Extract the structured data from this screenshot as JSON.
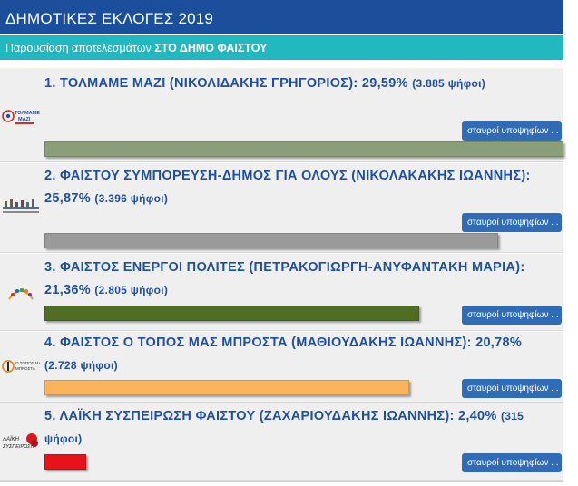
{
  "header": {
    "title": "ΔΗΜΟΤΙΚΕΣ ΕΚΛΟΓΕΣ 2019"
  },
  "subheader": {
    "prefix": "Παρουσίαση αποτελεσμάτων",
    "target": "ΣΤΟ ΔΗΜΟ ΦΑΙΣΤΟΥ"
  },
  "button_label": "σταυροί υποψηφίων . . .",
  "results": [
    {
      "title": "1. ΤΟΛΜΑΜΕ ΜΑΖΙ (ΝΙΚΟΛΙΔΑΚΗΣ ΓΡΗΓΟΡΙΟΣ): 29,59%",
      "votes": "(3.885 ψήφοι)",
      "percent": 29.59,
      "color": "#8a9e7a",
      "logo": "ΤΟΛΜΑΜΕ ΜΑΖΙ"
    },
    {
      "title": "2. ΦΑΙΣΤΟΥ ΣΥΜΠΟΡΕΥΣΗ-ΔΗΜΟΣ ΓΙΑ ΟΛΟΥΣ (ΝΙΚΟΛΑΚΑΚΗΣ ΙΩΑΝΝΗΣ): 25,87%",
      "votes": "(3.396 ψήφοι)",
      "percent": 25.87,
      "color": "#9a9a9a",
      "logo": ""
    },
    {
      "title": "3. ΦΑΙΣΤΟΣ ΕΝΕΡΓΟΙ ΠΟΛΙΤΕΣ (ΠΕΤΡΑΚΟΓΙΩΡΓΗ-ΑΝΥΦΑΝΤΑΚΗ ΜΑΡΙΑ): 21,36%",
      "votes": "(2.805 ψήφοι)",
      "percent": 21.36,
      "color": "#4f6e24",
      "logo": ""
    },
    {
      "title": "4. ΦΑΙΣΤΟΣ Ο ΤΟΠΟΣ ΜΑΣ ΜΠΡΟΣΤΑ (ΜΑΘΙΟΥΔΑΚΗΣ ΙΩΑΝΝΗΣ): 20,78%",
      "votes": "(2.728 ψήφοι)",
      "percent": 20.78,
      "color": "#fbb45c",
      "logo": "Ο ΤΟΠΟΣ ΜΑΣ ΜΠΡΟΣΤΑ"
    },
    {
      "title": "5. ΛΑΪΚΗ ΣΥΣΠΕΙΡΩΣΗ ΦΑΙΣΤΟΥ (ΖΑΧΑΡΙΟΥΔΑΚΗΣ ΙΩΑΝΝΗΣ): 2,40%",
      "votes": "(315 ψήφοι)",
      "percent": 2.4,
      "color": "#e8121a",
      "logo": "ΛΑΪΚΗ ΣΥΣΠΕΙΡΩΣΗ"
    }
  ]
}
